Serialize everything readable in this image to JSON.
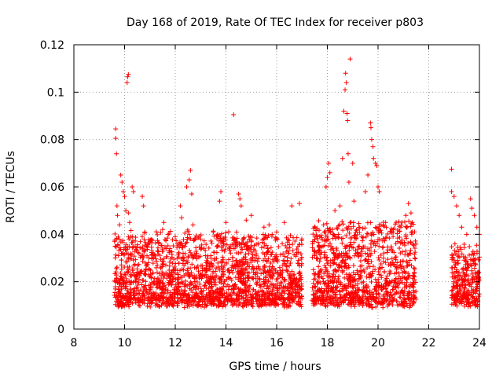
{
  "chart_data": {
    "type": "scatter",
    "title": "Day 168 of 2019, Rate Of TEC Index for receiver p803",
    "xlabel": "GPS time / hours",
    "ylabel": "ROTI / TECUs",
    "xlim": [
      8,
      24
    ],
    "ylim": [
      0,
      0.12
    ],
    "x_ticks": [
      8,
      10,
      12,
      14,
      16,
      18,
      20,
      22,
      24
    ],
    "y_ticks": [
      0,
      0.02,
      0.04,
      0.06,
      0.08,
      0.1,
      0.12
    ],
    "x_tick_labels": [
      "8",
      "10",
      "12",
      "14",
      "16",
      "18",
      "20",
      "22",
      "24"
    ],
    "y_tick_labels": [
      "0",
      "0.02",
      "0.04",
      "0.06",
      "0.08",
      "0.1",
      "0.12"
    ],
    "grid": true,
    "marker": "plus",
    "color": "#ff0000",
    "series": [
      {
        "name": "ROTI",
        "points": [
          [
            9.65,
            0.0845
          ],
          [
            9.65,
            0.0805
          ],
          [
            9.68,
            0.074
          ],
          [
            9.7,
            0.052
          ],
          [
            9.72,
            0.048
          ],
          [
            9.8,
            0.044
          ],
          [
            9.85,
            0.065
          ],
          [
            9.9,
            0.062
          ],
          [
            9.95,
            0.058
          ],
          [
            10.0,
            0.056
          ],
          [
            10.05,
            0.05
          ],
          [
            10.1,
            0.104
          ],
          [
            10.12,
            0.1065
          ],
          [
            10.15,
            0.1075
          ],
          [
            10.15,
            0.049
          ],
          [
            10.2,
            0.045
          ],
          [
            10.3,
            0.06
          ],
          [
            10.35,
            0.058
          ],
          [
            10.7,
            0.056
          ],
          [
            10.75,
            0.052
          ],
          [
            10.8,
            0.041
          ],
          [
            11.0,
            0.037
          ],
          [
            11.3,
            0.033
          ],
          [
            11.5,
            0.042
          ],
          [
            11.55,
            0.045
          ],
          [
            12.0,
            0.039
          ],
          [
            12.1,
            0.036
          ],
          [
            12.2,
            0.052
          ],
          [
            12.25,
            0.047
          ],
          [
            12.45,
            0.06
          ],
          [
            12.55,
            0.063
          ],
          [
            12.6,
            0.067
          ],
          [
            12.65,
            0.057
          ],
          [
            12.7,
            0.044
          ],
          [
            13.0,
            0.038
          ],
          [
            13.5,
            0.041
          ],
          [
            13.75,
            0.054
          ],
          [
            13.8,
            0.058
          ],
          [
            14.0,
            0.045
          ],
          [
            14.3,
            0.0905
          ],
          [
            14.5,
            0.057
          ],
          [
            14.55,
            0.055
          ],
          [
            14.6,
            0.052
          ],
          [
            14.8,
            0.046
          ],
          [
            15.0,
            0.048
          ],
          [
            15.5,
            0.043
          ],
          [
            15.7,
            0.044
          ],
          [
            16.0,
            0.041
          ],
          [
            16.3,
            0.045
          ],
          [
            16.6,
            0.052
          ],
          [
            16.9,
            0.053
          ],
          [
            17.5,
            0.031
          ],
          [
            17.7,
            0.039
          ],
          [
            17.85,
            0.044
          ],
          [
            17.95,
            0.06
          ],
          [
            18.0,
            0.064
          ],
          [
            18.05,
            0.07
          ],
          [
            18.1,
            0.066
          ],
          [
            18.3,
            0.05
          ],
          [
            18.5,
            0.052
          ],
          [
            18.6,
            0.072
          ],
          [
            18.65,
            0.092
          ],
          [
            18.7,
            0.101
          ],
          [
            18.72,
            0.108
          ],
          [
            18.75,
            0.104
          ],
          [
            18.78,
            0.091
          ],
          [
            18.8,
            0.088
          ],
          [
            18.82,
            0.074
          ],
          [
            18.85,
            0.062
          ],
          [
            18.9,
            0.114
          ],
          [
            19.0,
            0.07
          ],
          [
            19.05,
            0.054
          ],
          [
            19.5,
            0.058
          ],
          [
            19.6,
            0.065
          ],
          [
            19.7,
            0.087
          ],
          [
            19.72,
            0.085
          ],
          [
            19.75,
            0.08
          ],
          [
            19.8,
            0.077
          ],
          [
            19.82,
            0.072
          ],
          [
            19.9,
            0.07
          ],
          [
            19.95,
            0.069
          ],
          [
            20.0,
            0.06
          ],
          [
            20.05,
            0.058
          ],
          [
            20.3,
            0.045
          ],
          [
            20.6,
            0.041
          ],
          [
            20.9,
            0.043
          ],
          [
            21.1,
            0.048
          ],
          [
            21.2,
            0.053
          ],
          [
            21.3,
            0.049
          ],
          [
            21.35,
            0.045
          ],
          [
            22.9,
            0.0675
          ],
          [
            22.9,
            0.058
          ],
          [
            23.0,
            0.056
          ],
          [
            23.1,
            0.052
          ],
          [
            23.2,
            0.048
          ],
          [
            23.3,
            0.043
          ],
          [
            23.5,
            0.04
          ],
          [
            23.65,
            0.055
          ],
          [
            23.7,
            0.051
          ],
          [
            23.8,
            0.048
          ],
          [
            23.9,
            0.043
          ],
          [
            24.0,
            0.04
          ]
        ]
      }
    ],
    "dense_segments": [
      {
        "x_start": 9.6,
        "x_end": 17.0,
        "y_low": 0.005,
        "y_high": 0.04
      },
      {
        "x_start": 17.4,
        "x_end": 21.5,
        "y_low": 0.005,
        "y_high": 0.045
      },
      {
        "x_start": 22.9,
        "x_end": 24.0,
        "y_low": 0.005,
        "y_high": 0.035
      }
    ]
  }
}
